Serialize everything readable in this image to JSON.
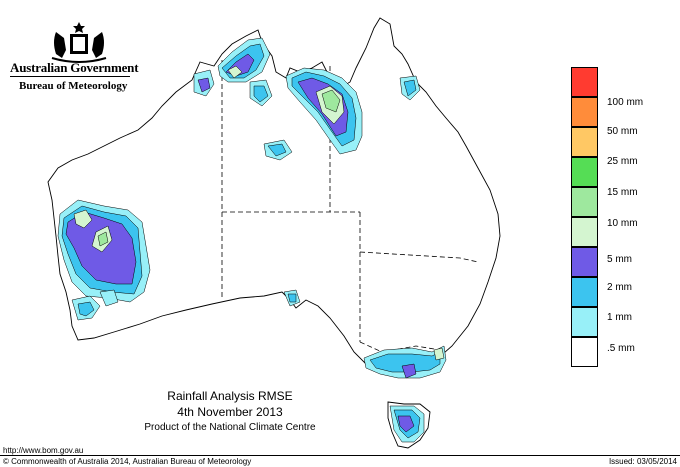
{
  "agency": {
    "government": "Australian Government",
    "bureau": "Bureau of Meteorology"
  },
  "legend": {
    "items": [
      {
        "label": "100 mm",
        "color": "#ff3b30"
      },
      {
        "label": "50 mm",
        "color": "#ff8c3a"
      },
      {
        "label": "25 mm",
        "color": "#ffc864"
      },
      {
        "label": "15 mm",
        "color": "#55dd55"
      },
      {
        "label": "10 mm",
        "color": "#9ee89e"
      },
      {
        "label": "",
        "color": "#d4f5d0"
      },
      {
        "label": "5 mm",
        "color": "#6f5ae6"
      },
      {
        "label": "2 mm",
        "color": "#3cc4ef"
      },
      {
        "label": "1 mm",
        "color": "#98f0f8"
      },
      {
        "label": ".5 mm",
        "color": "#ffffff"
      }
    ]
  },
  "caption": {
    "title": "Rainfall Analysis RMSE",
    "date": "4th  November  2013",
    "product": "Product of the National Climate Centre"
  },
  "footer": {
    "url": "http://www.bom.gov.au",
    "copyright": "© Commonwealth of Australia 2014, Australian Bureau of Meteorology",
    "issued": "Issued: 03/05/2014"
  },
  "map_colors": {
    "land": "#ffffff",
    "coast": "#000000",
    "border": "#000000"
  }
}
